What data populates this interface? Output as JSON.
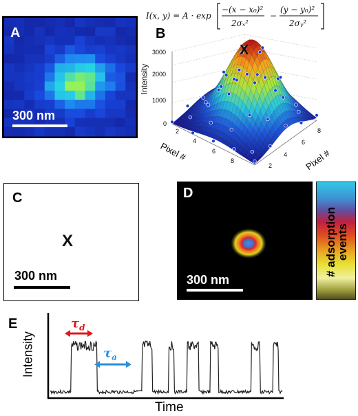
{
  "panels": {
    "a": {
      "letter": "A",
      "scale_label": "300 nm",
      "colors": {
        "bg": "#1030b0",
        "hot": "#7ff060"
      }
    },
    "b": {
      "letter": "B",
      "formula": "I(x, y) = A · exp[ −(x − x₀)² / 2σₓ² − (y − y₀)² / 2σᵧ² ]",
      "marker": "X",
      "chart_data": {
        "type": "surface",
        "zlabel": "Intensity",
        "xlabel": "Pixel #",
        "ylabel": "Pixel #",
        "z_ticks": [
          "0",
          "1000",
          "2000",
          "3000"
        ],
        "x_ticks": [
          "2",
          "4",
          "6",
          "8"
        ],
        "y_ticks": [
          "2",
          "4",
          "6",
          "8"
        ],
        "zlim": [
          0,
          3500
        ]
      }
    },
    "c": {
      "letter": "C",
      "marker": "X",
      "scale_label": "300 nm"
    },
    "d": {
      "letter": "D",
      "scale_label": "300 nm",
      "colorbar_label": "# adsorption events"
    },
    "e": {
      "letter": "E",
      "tau_d": "τd",
      "tau_a": "τa",
      "colors": {
        "tau_d": "#e01818",
        "tau_a": "#2a8fdc"
      },
      "chart_data": {
        "type": "line",
        "xlabel": "Time",
        "ylabel": "Intensity",
        "high_states": [
          [
            0.09,
            0.2
          ],
          [
            0.395,
            0.44
          ],
          [
            0.51,
            0.535
          ],
          [
            0.59,
            0.64
          ],
          [
            0.69,
            0.725
          ],
          [
            0.865,
            0.905
          ],
          [
            0.96,
            0.985
          ]
        ],
        "low_level": 0.1,
        "high_level": 0.8
      }
    }
  }
}
